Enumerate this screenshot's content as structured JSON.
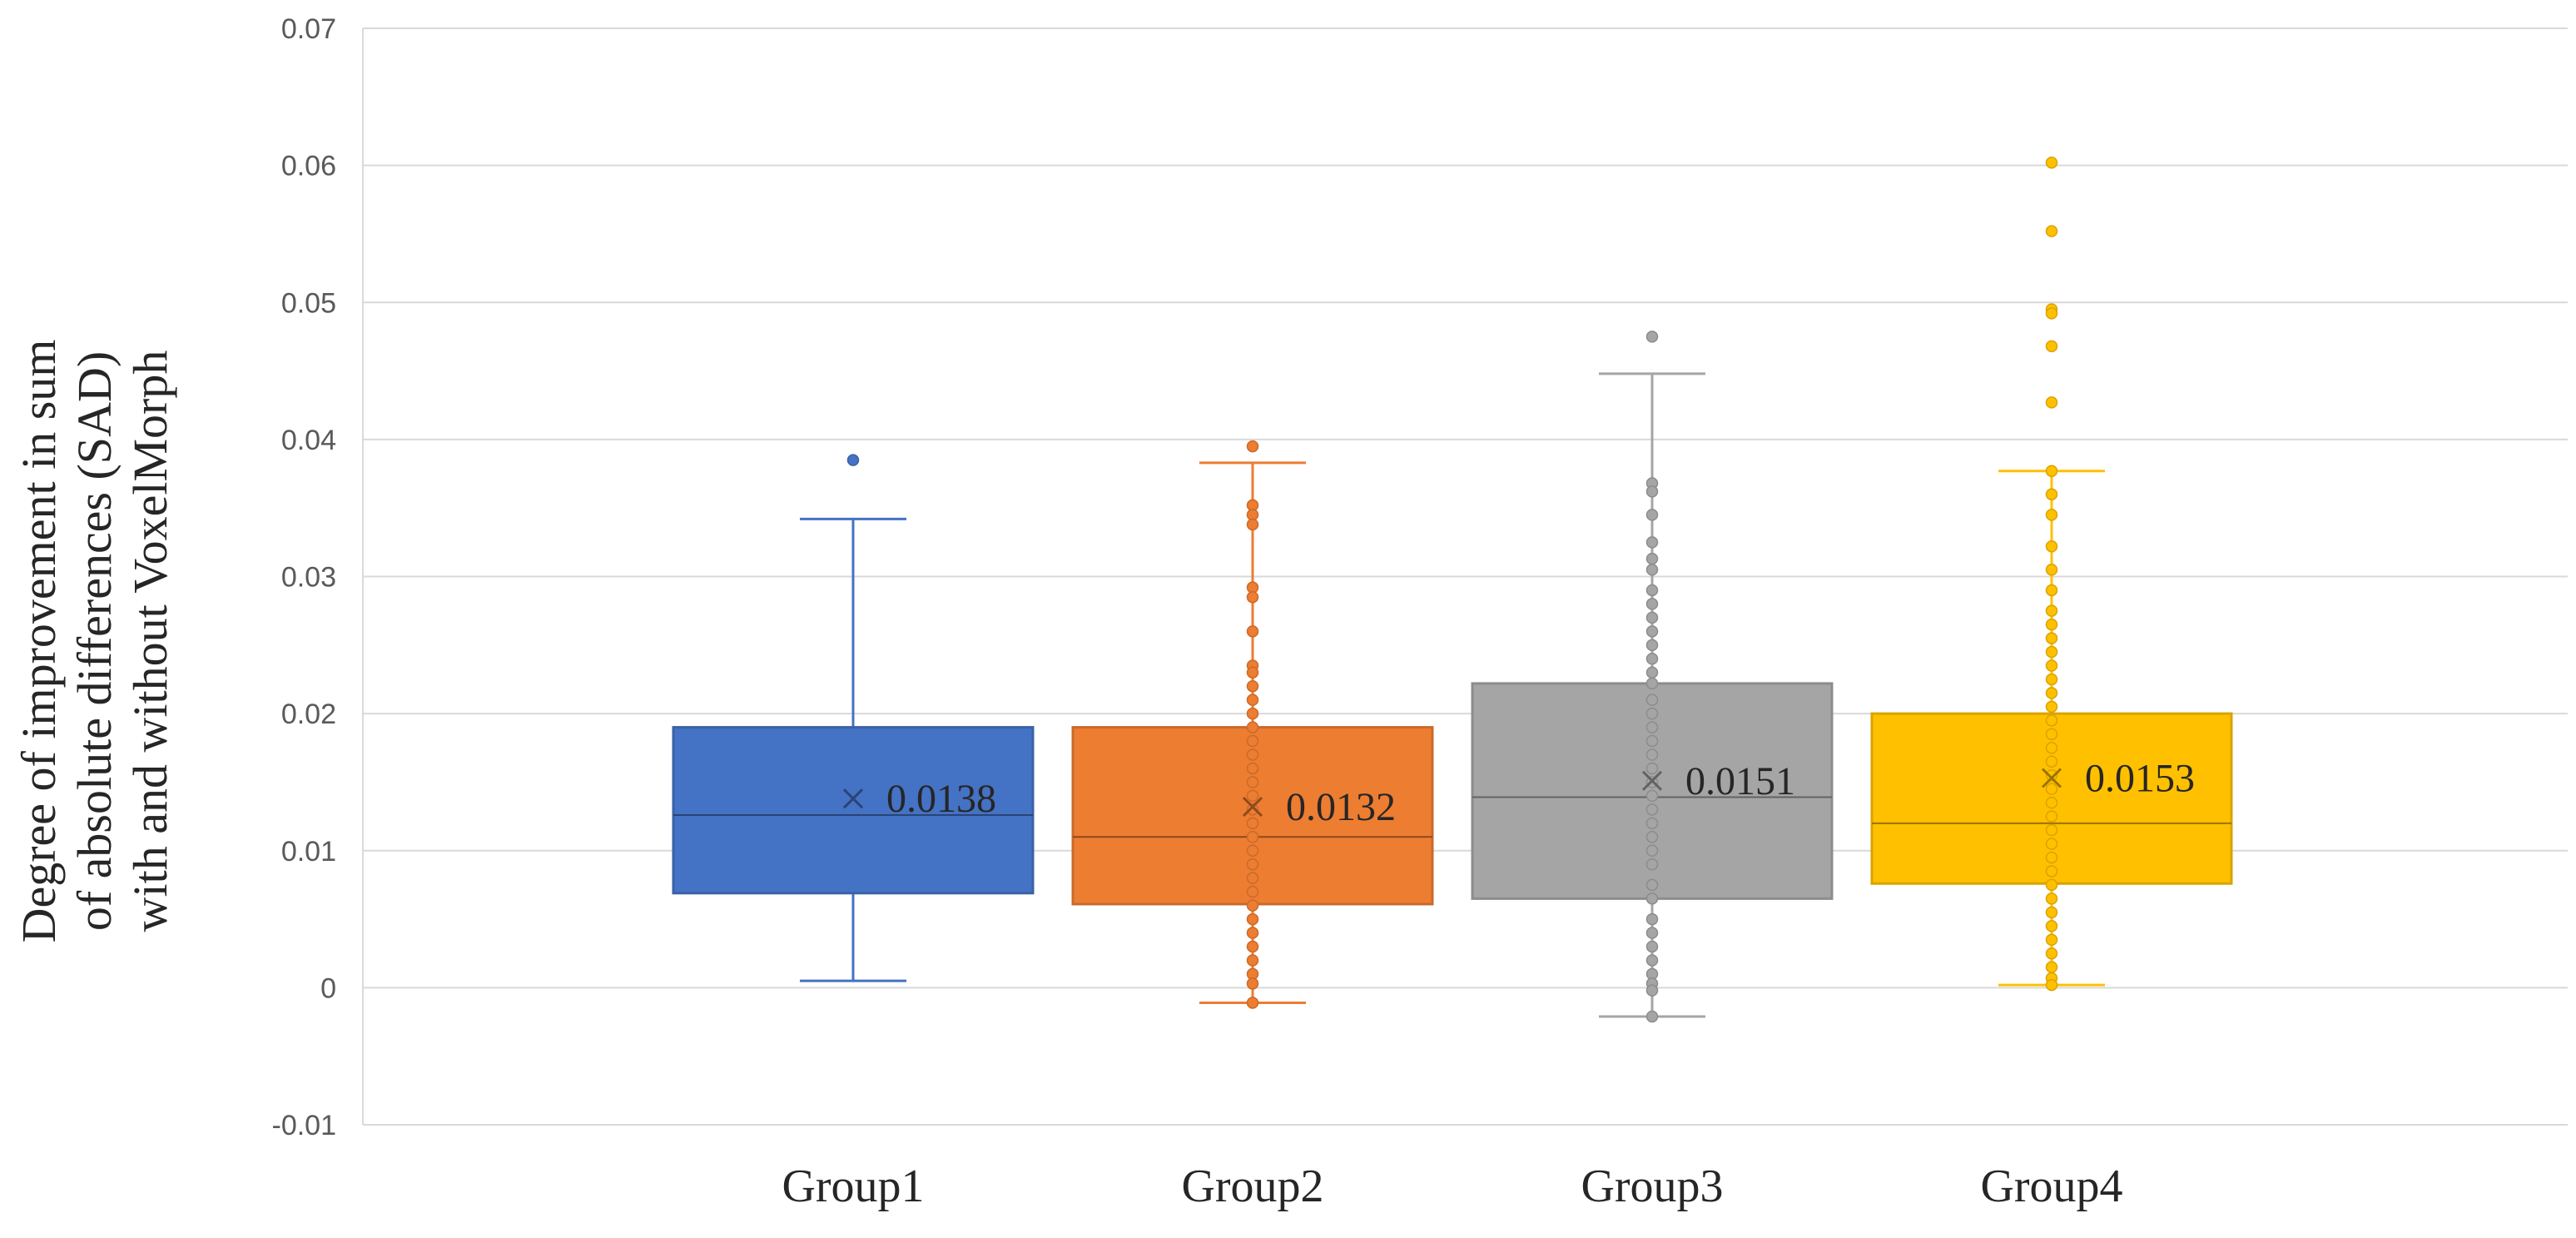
{
  "chart_data": {
    "type": "box",
    "title": "",
    "xlabel": "",
    "ylabel_lines": [
      "Degree of improvement in  sum",
      "of absolute differences (SAD)",
      "with and without VoxelMorph"
    ],
    "ylim": [
      -0.01,
      0.07
    ],
    "yticks": [
      -0.01,
      0,
      0.01,
      0.02,
      0.03,
      0.04,
      0.05,
      0.06,
      0.07
    ],
    "ytick_labels": [
      "-0.01",
      "0",
      "0.01",
      "0.02",
      "0.03",
      "0.04",
      "0.05",
      "0.06",
      "0.07"
    ],
    "grid": true,
    "categories": [
      "Group1",
      "Group2",
      "Group3",
      "Group4"
    ],
    "series": [
      {
        "name": "Group1",
        "color": "#4472C4",
        "whisker_low": 0.0005,
        "q1": 0.0069,
        "median": 0.0126,
        "q3": 0.019,
        "whisker_high": 0.0342,
        "mean": 0.0138,
        "mean_label": "0.0138",
        "points": [
          0.0385
        ]
      },
      {
        "name": "Group2",
        "color": "#ED7D31",
        "whisker_low": -0.0011,
        "q1": 0.0061,
        "median": 0.011,
        "q3": 0.019,
        "whisker_high": 0.0383,
        "mean": 0.0132,
        "mean_label": "0.0132",
        "points": [
          0.0395,
          0.0352,
          0.0345,
          0.0338,
          0.0292,
          0.0285,
          0.026,
          0.0235,
          0.023,
          0.022,
          0.021,
          0.02,
          0.019,
          0.018,
          0.017,
          0.016,
          0.015,
          0.014,
          0.013,
          0.012,
          0.011,
          0.01,
          0.009,
          0.008,
          0.007,
          0.006,
          0.005,
          0.004,
          0.003,
          0.002,
          0.001,
          0.0003,
          -0.0011
        ]
      },
      {
        "name": "Group3",
        "color": "#A5A5A5",
        "whisker_low": -0.0021,
        "q1": 0.0065,
        "median": 0.0139,
        "q3": 0.0222,
        "whisker_high": 0.0448,
        "mean": 0.0151,
        "mean_label": "0.0151",
        "points": [
          0.0475,
          0.0368,
          0.0362,
          0.0345,
          0.0325,
          0.0313,
          0.0305,
          0.029,
          0.028,
          0.027,
          0.026,
          0.025,
          0.024,
          0.023,
          0.0222,
          0.021,
          0.02,
          0.019,
          0.018,
          0.017,
          0.016,
          0.015,
          0.014,
          0.013,
          0.012,
          0.011,
          0.01,
          0.009,
          0.0075,
          0.0065,
          0.005,
          0.004,
          0.003,
          0.002,
          0.001,
          0.0003,
          -0.0002,
          -0.0021
        ]
      },
      {
        "name": "Group4",
        "color": "#FFC000",
        "whisker_low": 0.0002,
        "q1": 0.0076,
        "median": 0.012,
        "q3": 0.02,
        "whisker_high": 0.0377,
        "mean": 0.0153,
        "mean_label": "0.0153",
        "points": [
          0.0602,
          0.0552,
          0.0495,
          0.0492,
          0.0468,
          0.0427,
          0.0377,
          0.036,
          0.0345,
          0.0322,
          0.0305,
          0.029,
          0.0275,
          0.0265,
          0.0255,
          0.0245,
          0.0235,
          0.0225,
          0.0215,
          0.0205,
          0.0195,
          0.0185,
          0.0175,
          0.0165,
          0.0155,
          0.0145,
          0.0135,
          0.0125,
          0.0115,
          0.0105,
          0.0095,
          0.0085,
          0.0075,
          0.0065,
          0.0055,
          0.0045,
          0.0035,
          0.0025,
          0.0015,
          0.0007,
          0.0002
        ]
      }
    ]
  }
}
